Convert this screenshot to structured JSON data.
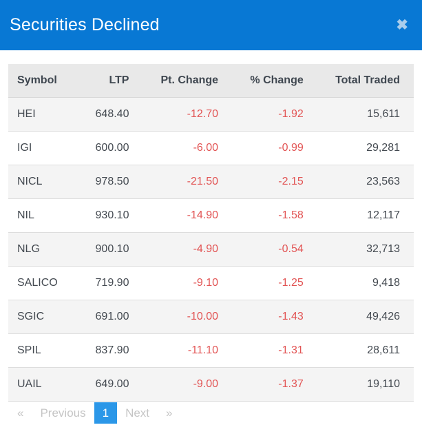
{
  "modal": {
    "title": "Securities Declined",
    "close_icon": "✖"
  },
  "table": {
    "columns": [
      "Symbol",
      "LTP",
      "Pt. Change",
      "% Change",
      "Total Traded"
    ],
    "rows": [
      {
        "symbol": "HEI",
        "ltp": "648.40",
        "pt_change": "-12.70",
        "pct_change": "-1.92",
        "total_traded": "15,611"
      },
      {
        "symbol": "IGI",
        "ltp": "600.00",
        "pt_change": "-6.00",
        "pct_change": "-0.99",
        "total_traded": "29,281"
      },
      {
        "symbol": "NICL",
        "ltp": "978.50",
        "pt_change": "-21.50",
        "pct_change": "-2.15",
        "total_traded": "23,563"
      },
      {
        "symbol": "NIL",
        "ltp": "930.10",
        "pt_change": "-14.90",
        "pct_change": "-1.58",
        "total_traded": "12,117"
      },
      {
        "symbol": "NLG",
        "ltp": "900.10",
        "pt_change": "-4.90",
        "pct_change": "-0.54",
        "total_traded": "32,713"
      },
      {
        "symbol": "SALICO",
        "ltp": "719.90",
        "pt_change": "-9.10",
        "pct_change": "-1.25",
        "total_traded": "9,418"
      },
      {
        "symbol": "SGIC",
        "ltp": "691.00",
        "pt_change": "-10.00",
        "pct_change": "-1.43",
        "total_traded": "49,426"
      },
      {
        "symbol": "SPIL",
        "ltp": "837.90",
        "pt_change": "-11.10",
        "pct_change": "-1.31",
        "total_traded": "28,611"
      },
      {
        "symbol": "UAIL",
        "ltp": "649.00",
        "pt_change": "-9.00",
        "pct_change": "-1.37",
        "total_traded": "19,110"
      }
    ]
  },
  "pagination": {
    "first": "«",
    "previous": "Previous",
    "current_page": "1",
    "next": "Next",
    "last": "»"
  },
  "colors": {
    "header_blue": "#0878d4",
    "active_page_blue": "#2b97e8",
    "negative_red": "#e25454",
    "table_header_bg": "#e9e9e9",
    "row_alt_bg": "#f4f4f4"
  }
}
